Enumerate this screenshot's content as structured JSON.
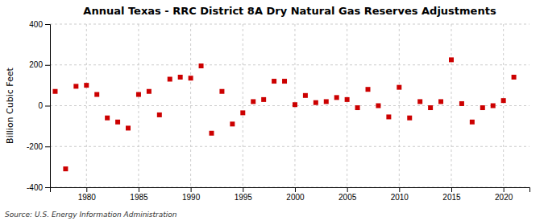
{
  "chart_data": {
    "type": "scatter",
    "title": "Annual Texas - RRC District 8A Dry Natural Gas Reserves Adjustments",
    "ylabel": "Billion Cubic Feet",
    "annotations": [
      "Source: U.S. Energy Information Administration"
    ],
    "x": [
      1977,
      1978,
      1979,
      1980,
      1981,
      1982,
      1983,
      1984,
      1985,
      1986,
      1987,
      1988,
      1989,
      1990,
      1991,
      1992,
      1993,
      1994,
      1995,
      1996,
      1997,
      1998,
      1999,
      2000,
      2001,
      2002,
      2003,
      2004,
      2005,
      2006,
      2007,
      2008,
      2009,
      2010,
      2011,
      2012,
      2013,
      2014,
      2015,
      2016,
      2017,
      2018,
      2019,
      2020,
      2021
    ],
    "values": [
      70,
      -310,
      95,
      100,
      55,
      -60,
      -80,
      -110,
      55,
      70,
      -45,
      130,
      140,
      135,
      195,
      -135,
      70,
      -90,
      -35,
      20,
      30,
      120,
      120,
      5,
      50,
      15,
      20,
      40,
      30,
      -10,
      80,
      0,
      -55,
      90,
      -60,
      20,
      -10,
      20,
      225,
      10,
      -80,
      -10,
      0,
      25,
      140
    ],
    "color": "#cc0000",
    "marker": "square",
    "xlim": [
      1976.5,
      2022.5
    ],
    "xticks": [
      1980,
      1985,
      1990,
      1995,
      2000,
      2005,
      2010,
      2015,
      2020
    ],
    "ylim": [
      -400,
      400
    ],
    "yticks": [
      -400,
      -200,
      0,
      200,
      400
    ],
    "grid": true
  }
}
